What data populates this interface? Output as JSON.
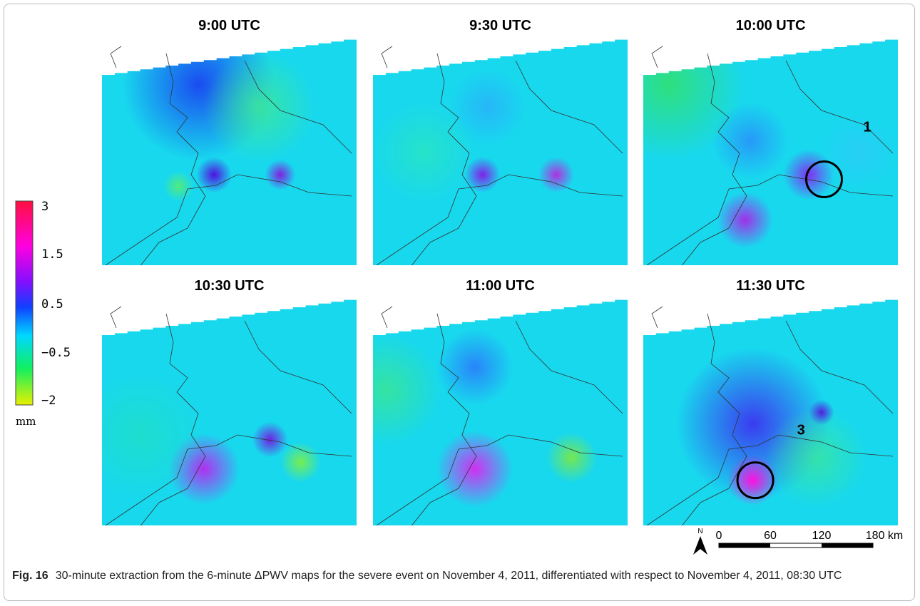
{
  "panels": [
    {
      "title": "9:00 UTC"
    },
    {
      "title": "9:30 UTC"
    },
    {
      "title": "10:00 UTC",
      "annotation": "1"
    },
    {
      "title": "10:30 UTC"
    },
    {
      "title": "11:00 UTC"
    },
    {
      "title": "11:30 UTC",
      "annotation": "3"
    }
  ],
  "colorbar": {
    "labels": [
      "3",
      "1.5",
      "0.5",
      "−0.5",
      "−2"
    ],
    "unit": "mm"
  },
  "scale_bar": {
    "north": "N",
    "labels": [
      "0",
      "60",
      "120",
      "180 km"
    ]
  },
  "caption": {
    "label": "Fig. 16",
    "text": "30-minute extraction from the 6-minute ΔPWV maps for the severe event on November 4, 2011, differentiated with respect to November 4, 2011, 08:30 UTC"
  }
}
